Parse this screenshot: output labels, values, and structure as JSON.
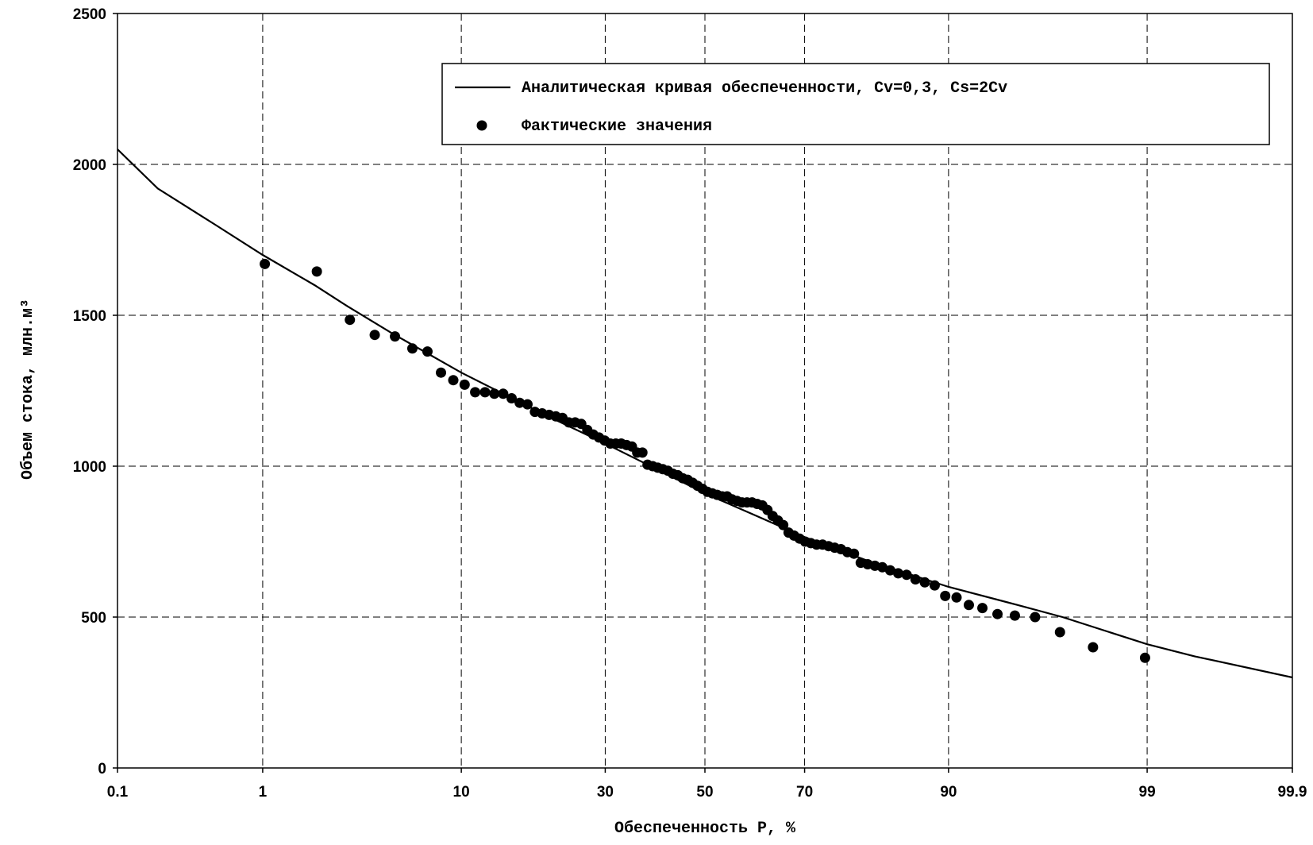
{
  "chart_data": {
    "type": "line",
    "xlabel": "Обеспеченность P, %",
    "ylabel": "Объем стока, млн.м³",
    "xscale": "probability",
    "xlim": [
      0.1,
      99.9
    ],
    "xticks": [
      0.1,
      1,
      10,
      30,
      50,
      70,
      90,
      99,
      99.9
    ],
    "ylim": [
      0,
      2500
    ],
    "yticks": [
      0,
      500,
      1000,
      1500,
      2000,
      2500
    ],
    "grid": true,
    "legend": "upper right",
    "series": [
      {
        "name": "Аналитическая кривая обеспеченности, Cv=0,3, Cs=2Cv",
        "type": "line",
        "color": "#000000",
        "x": [
          0.1,
          0.2,
          0.5,
          1,
          2,
          3,
          5,
          10,
          20,
          30,
          40,
          50,
          60,
          70,
          80,
          90,
          95,
          97,
          99,
          99.5,
          99.9
        ],
        "values": [
          2050,
          1920,
          1800,
          1700,
          1600,
          1530,
          1440,
          1310,
          1170,
          1075,
          990,
          910,
          840,
          765,
          690,
          600,
          540,
          500,
          410,
          370,
          300
        ]
      },
      {
        "name": "Фактические значения",
        "type": "scatter",
        "color": "#000000",
        "x": [
          1.03,
          2.06,
          3.09,
          4.12,
          5.15,
          6.19,
          7.22,
          8.25,
          9.28,
          10.31,
          11.34,
          12.37,
          13.4,
          14.43,
          15.46,
          16.49,
          17.53,
          18.56,
          19.59,
          20.62,
          21.65,
          22.68,
          23.71,
          24.74,
          25.77,
          26.8,
          27.84,
          28.87,
          29.9,
          30.93,
          31.96,
          32.99,
          34.02,
          35.05,
          36.08,
          37.11,
          38.14,
          39.18,
          40.21,
          41.24,
          42.27,
          43.3,
          44.33,
          45.36,
          46.39,
          47.42,
          48.45,
          49.48,
          50.52,
          51.55,
          52.58,
          53.61,
          54.64,
          55.67,
          56.7,
          57.73,
          58.76,
          59.79,
          60.82,
          61.86,
          62.89,
          63.92,
          64.95,
          65.98,
          67.01,
          68.04,
          69.07,
          70.1,
          71.13,
          72.16,
          73.2,
          74.23,
          75.26,
          76.29,
          77.32,
          78.35,
          79.38,
          80.41,
          81.44,
          82.47,
          83.51,
          84.54,
          85.57,
          86.6,
          87.63,
          88.66,
          89.69,
          90.72,
          91.75,
          92.78,
          93.81,
          94.85,
          95.88,
          96.91,
          97.94,
          98.97
        ],
        "values": [
          1670,
          1645,
          1485,
          1435,
          1430,
          1390,
          1380,
          1310,
          1285,
          1270,
          1245,
          1245,
          1240,
          1240,
          1225,
          1210,
          1205,
          1180,
          1175,
          1170,
          1165,
          1160,
          1145,
          1145,
          1140,
          1120,
          1105,
          1095,
          1085,
          1075,
          1075,
          1075,
          1070,
          1065,
          1045,
          1045,
          1005,
          1000,
          995,
          990,
          985,
          975,
          970,
          960,
          955,
          945,
          935,
          925,
          915,
          910,
          905,
          900,
          900,
          890,
          885,
          880,
          880,
          880,
          875,
          870,
          855,
          835,
          820,
          805,
          780,
          770,
          760,
          750,
          745,
          740,
          740,
          735,
          730,
          725,
          715,
          710,
          680,
          675,
          670,
          665,
          655,
          645,
          640,
          625,
          615,
          605,
          570,
          565,
          540,
          530,
          510,
          505,
          500,
          450,
          400,
          365
        ]
      }
    ]
  }
}
